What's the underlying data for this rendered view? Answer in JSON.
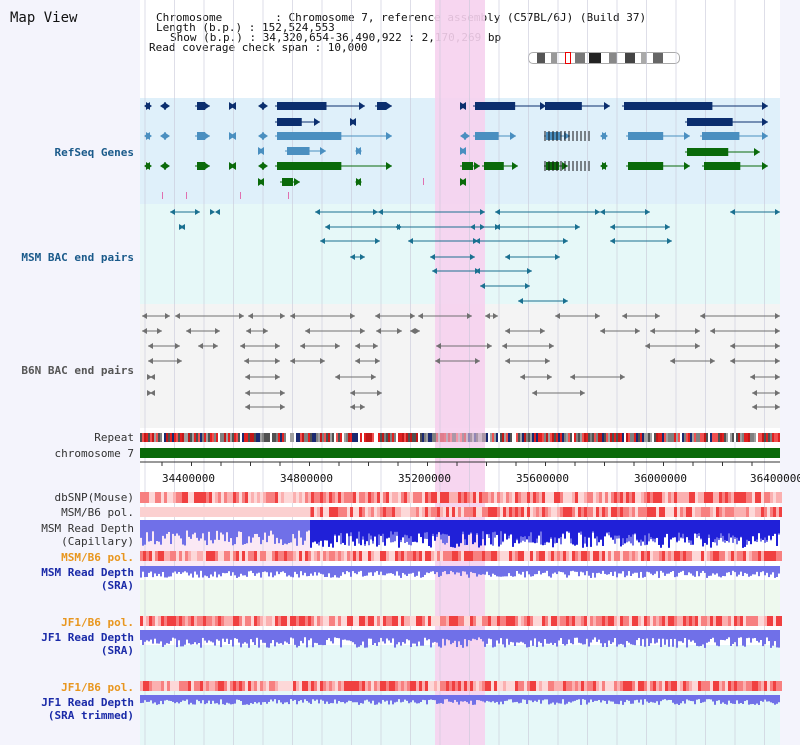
{
  "page_title": "Map View",
  "info": {
    "chromosome_line": "Chromosome        : Chromosome 7, reference assembly (C57BL/6J) (Build 37)",
    "length_line": "Length (b.p.) : 152,524,553",
    "show_line": "Show (b.p.) : 34,320,654-36,490,922 : 2,170,269 bp",
    "span_line": "Read coverage check span : 10,000"
  },
  "tracks": {
    "refseq": "RefSeq Genes",
    "msm_bac": "MSM BAC end pairs",
    "b6n_bac": "B6N BAC end pairs",
    "repeat": "Repeat",
    "chromosome": "chromosome 7",
    "dbsnp": "dbSNP(Mouse)",
    "msm_b6_pol_1": "MSM/B6 pol.",
    "msm_read_depth_cap_1": "MSM Read Depth",
    "msm_read_depth_cap_2": "(Capillary)",
    "msm_b6_pol_2": "MSM/B6 pol.",
    "msm_read_depth_sra_1": "MSM Read Depth",
    "msm_read_depth_sra_2": "(SRA)",
    "jf1_b6_pol_1": "JF1/B6 pol.",
    "jf1_read_depth_1": "JF1 Read Depth",
    "jf1_read_depth_2": "(SRA)",
    "jf1_b6_pol_2": "JF1/B6 pol.",
    "jf1_read_depth_trim_1": "JF1 Read Depth",
    "jf1_read_depth_trim_2": "(SRA trimmed)"
  },
  "axis": {
    "ticks": [
      "34400000",
      "34800000",
      "35200000",
      "35600000",
      "36000000",
      "36400000"
    ]
  },
  "colors": {
    "highlight": "#f6d2ee",
    "refseq_bg": "#dff0fa",
    "msm_bg": "#e6f8f8",
    "b6n_bg": "#f4f4f4",
    "gene_dark": "#0b2e6e",
    "gene_mid": "#4a8fc0",
    "gene_green": "#0a6a0a",
    "bac_teal": "#1a7090",
    "bac_gray": "#707070",
    "depth_blue": "#2020d8",
    "depth_light": "#7070e8",
    "pol_red": "#f04040"
  }
}
